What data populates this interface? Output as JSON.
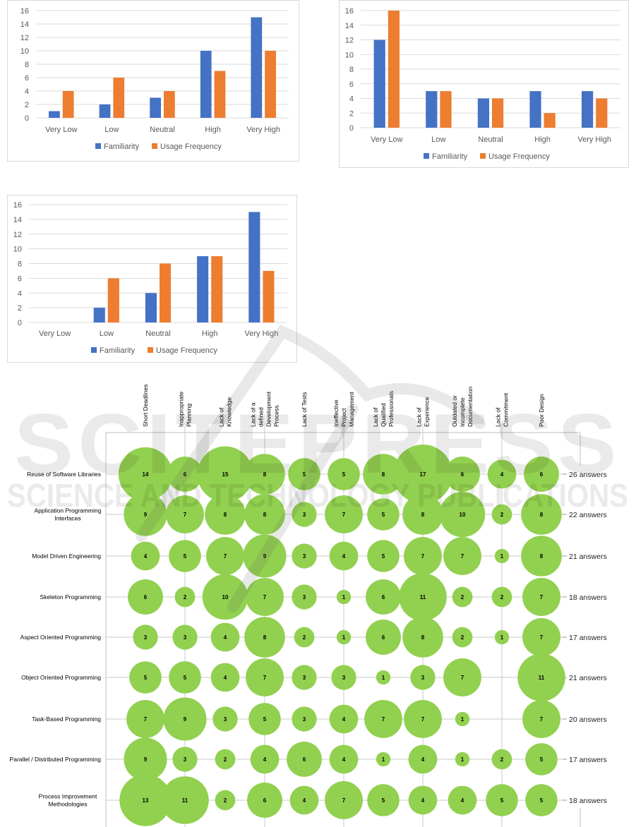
{
  "colors": {
    "familiarity": "#4472c4",
    "usage": "#ed7d31",
    "bubble": "#92d050",
    "grid": "#d9d9d9",
    "axis_text": "#595959"
  },
  "watermark": {
    "line1": "SCITEPRESS",
    "line2": "SCIENCE AND TECHNOLOGY PUBLICATIONS"
  },
  "chart_data": [
    {
      "type": "bar",
      "title": "",
      "categories": [
        "Very Low",
        "Low",
        "Neutral",
        "High",
        "Very High"
      ],
      "series": [
        {
          "name": "Familiarity",
          "values": [
            1,
            2,
            3,
            10,
            15
          ]
        },
        {
          "name": "Usage Frequency",
          "values": [
            4,
            6,
            4,
            7,
            10
          ]
        }
      ],
      "yticks": [
        "0",
        "2",
        "4",
        "6",
        "8",
        "10",
        "12",
        "14",
        "16"
      ],
      "ylim": [
        0,
        16
      ],
      "grid": true,
      "legend": "bottom",
      "xlabel": "",
      "ylabel": ""
    },
    {
      "type": "bar",
      "title": "",
      "categories": [
        "Very Low",
        "Low",
        "Neutral",
        "High",
        "Very High"
      ],
      "series": [
        {
          "name": "Familiarity",
          "values": [
            12,
            5,
            4,
            5,
            5
          ]
        },
        {
          "name": "Usage Frequency",
          "values": [
            16,
            5,
            4,
            2,
            4
          ]
        }
      ],
      "yticks": [
        "0",
        "2",
        "4",
        "6",
        "8",
        "10",
        "12",
        "14",
        "16"
      ],
      "ylim": [
        0,
        16
      ],
      "grid": true,
      "legend": "bottom",
      "xlabel": "",
      "ylabel": ""
    },
    {
      "type": "bar",
      "title": "",
      "categories": [
        "Very Low",
        "Low",
        "Neutral",
        "High",
        "Very High"
      ],
      "series": [
        {
          "name": "Familiarity",
          "values": [
            0,
            2,
            4,
            9,
            15
          ]
        },
        {
          "name": "Usage Frequency",
          "values": [
            0,
            6,
            8,
            9,
            7
          ]
        }
      ],
      "yticks": [
        "0",
        "2",
        "4",
        "6",
        "8",
        "10",
        "12",
        "14",
        "16"
      ],
      "ylim": [
        0,
        16
      ],
      "grid": true,
      "legend": "bottom",
      "xlabel": "",
      "ylabel": ""
    },
    {
      "type": "bubble",
      "title": "",
      "columns": [
        [
          "Short Deadlines"
        ],
        [
          "Inappropriate",
          "Planning"
        ],
        [
          "Lack of",
          "Knowledge"
        ],
        [
          "Lack of a",
          "defined",
          "Development",
          "Process"
        ],
        [
          "Lack of Tests"
        ],
        [
          "Ineffective",
          "Project",
          "Management"
        ],
        [
          "Lack of",
          "Qualified",
          "Professionals"
        ],
        [
          "Lack of",
          "Experience"
        ],
        [
          "Outdated or",
          "Incomplete",
          "Documentation"
        ],
        [
          "Lack of",
          "Commitment"
        ],
        [
          "Poor Design"
        ]
      ],
      "rows": [
        {
          "label": [
            "Reuse of Software Libraries"
          ],
          "values": [
            14,
            6,
            15,
            8,
            5,
            5,
            8,
            17,
            6,
            4,
            6
          ],
          "total": "26 answers"
        },
        {
          "label": [
            "Application Programming",
            "Interfaces"
          ],
          "values": [
            9,
            7,
            8,
            8,
            3,
            7,
            5,
            8,
            10,
            2,
            8
          ],
          "total": "22 answers"
        },
        {
          "label": [
            "Model Driven Engineering"
          ],
          "values": [
            4,
            5,
            7,
            9,
            3,
            4,
            5,
            7,
            7,
            1,
            8
          ],
          "total": "21 answers"
        },
        {
          "label": [
            "Skeleton Programming"
          ],
          "values": [
            6,
            2,
            10,
            7,
            3,
            1,
            6,
            11,
            2,
            2,
            7
          ],
          "total": "18 answers"
        },
        {
          "label": [
            "Aspect Oriented Programming"
          ],
          "values": [
            3,
            3,
            4,
            8,
            2,
            1,
            6,
            8,
            2,
            1,
            7
          ],
          "total": "17 answers"
        },
        {
          "label": [
            "Object Oriented Programming"
          ],
          "values": [
            5,
            5,
            4,
            7,
            3,
            3,
            1,
            3,
            7,
            null,
            11
          ],
          "total": "21 answers"
        },
        {
          "label": [
            "Task-Based Programming"
          ],
          "values": [
            7,
            9,
            3,
            5,
            3,
            4,
            7,
            7,
            1,
            null,
            7
          ],
          "total": "20 answers"
        },
        {
          "label": [
            "Parallel / Distributed Programming"
          ],
          "values": [
            9,
            3,
            2,
            4,
            6,
            4,
            1,
            4,
            1,
            2,
            5
          ],
          "total": "17 answers"
        },
        {
          "label": [
            "Process Improvement",
            "Methodologies"
          ],
          "values": [
            13,
            11,
            2,
            6,
            4,
            7,
            5,
            4,
            4,
            5,
            5
          ],
          "total": "18 answers"
        }
      ]
    }
  ]
}
